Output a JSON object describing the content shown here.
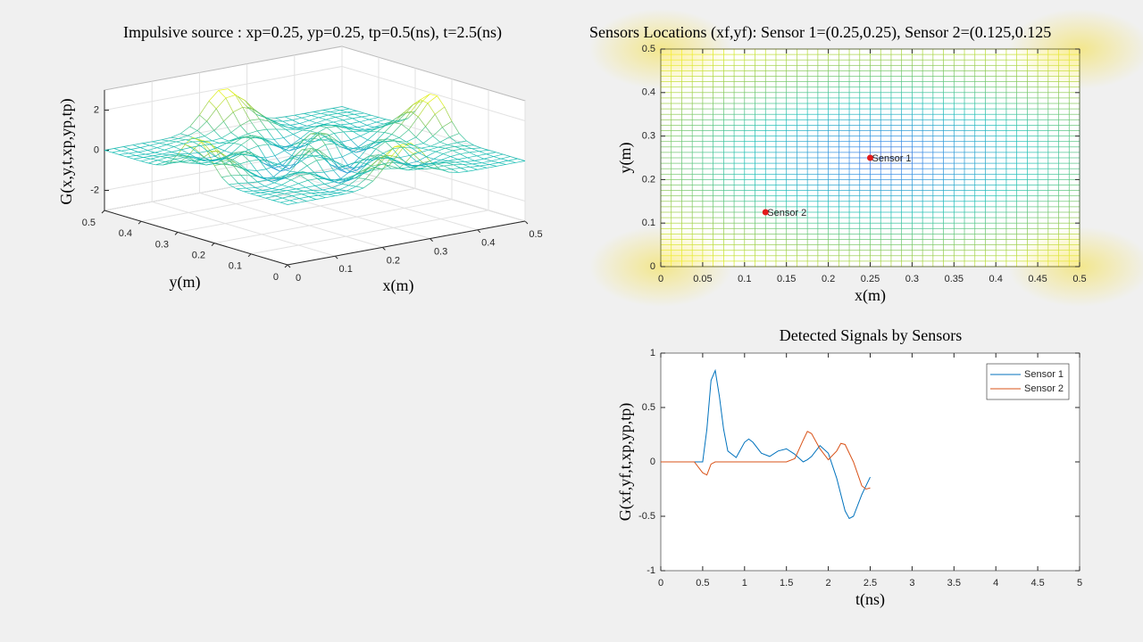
{
  "chart_data": [
    {
      "type": "surface",
      "title": "Impulsive source : xp=0.25, yp=0.25, tp=0.5(ns), t=2.5(ns)",
      "xlabel": "x(m)",
      "ylabel": "y(m)",
      "zlabel": "G(x,y,t,xp,yp,tp)",
      "xlim": [
        0,
        0.5
      ],
      "ylim": [
        0,
        0.5
      ],
      "zlim": [
        -3,
        3
      ],
      "xticks": [
        0,
        0.1,
        0.2,
        0.3,
        0.4,
        0.5
      ],
      "yticks": [
        0,
        0.1,
        0.2,
        0.3,
        0.4,
        0.5
      ],
      "zticks": [
        -2,
        0,
        2
      ],
      "grid": true
    },
    {
      "type": "scatter",
      "title": "Sensors Locations (xf,yf): Sensor 1=(0.25,0.25), Sensor 2=(0.125,0.125",
      "xlabel": "x(m)",
      "ylabel": "y(m)",
      "xlim": [
        0,
        0.5
      ],
      "ylim": [
        0,
        0.5
      ],
      "xticks": [
        0,
        0.05,
        0.1,
        0.15,
        0.2,
        0.25,
        0.3,
        0.35,
        0.4,
        0.45,
        0.5
      ],
      "yticks": [
        0,
        0.1,
        0.2,
        0.3,
        0.4,
        0.5
      ],
      "series": [
        {
          "name": "Sensor 1",
          "color": "#e31a1c",
          "x": [
            0.25
          ],
          "values": [
            0.25
          ]
        },
        {
          "name": "Sensor 2",
          "color": "#e31a1c",
          "x": [
            0.125
          ],
          "values": [
            0.125
          ]
        }
      ]
    },
    {
      "type": "line",
      "title": "Detected Signals by Sensors",
      "xlabel": "t(ns)",
      "ylabel": "G(xf,yf,t,xp,yp,tp)",
      "xlim": [
        0,
        5
      ],
      "ylim": [
        -1,
        1
      ],
      "xticks": [
        0,
        0.5,
        1,
        1.5,
        2,
        2.5,
        3,
        3.5,
        4,
        4.5,
        5
      ],
      "yticks": [
        -1,
        -0.5,
        0,
        0.5,
        1
      ],
      "legend": "upper right",
      "x": [
        0,
        0.1,
        0.2,
        0.3,
        0.4,
        0.5,
        0.55,
        0.6,
        0.65,
        0.7,
        0.75,
        0.8,
        0.9,
        1,
        1.05,
        1.1,
        1.2,
        1.3,
        1.4,
        1.5,
        1.6,
        1.7,
        1.75,
        1.8,
        1.9,
        2,
        2.1,
        2.15,
        2.2,
        2.25,
        2.3,
        2.4,
        2.45,
        2.5
      ],
      "series": [
        {
          "name": "Sensor 1",
          "color": "#0072bd",
          "values": [
            0,
            0,
            0,
            0,
            0,
            0,
            0.3,
            0.75,
            0.84,
            0.6,
            0.3,
            0.1,
            0.04,
            0.18,
            0.21,
            0.18,
            0.08,
            0.05,
            0.1,
            0.12,
            0.07,
            0,
            0.02,
            0.05,
            0.15,
            0.08,
            -0.15,
            -0.3,
            -0.45,
            -0.52,
            -0.5,
            -0.3,
            -0.22,
            -0.14
          ]
        },
        {
          "name": "Sensor 2",
          "color": "#d95319",
          "values": [
            0,
            0,
            0,
            0,
            0,
            -0.1,
            -0.12,
            -0.02,
            0,
            0,
            0,
            0,
            0,
            0,
            0,
            0,
            0,
            0,
            0,
            0,
            0.03,
            0.2,
            0.28,
            0.26,
            0.12,
            0.02,
            0.1,
            0.17,
            0.16,
            0.08,
            0,
            -0.22,
            -0.25,
            -0.24
          ]
        }
      ]
    }
  ]
}
